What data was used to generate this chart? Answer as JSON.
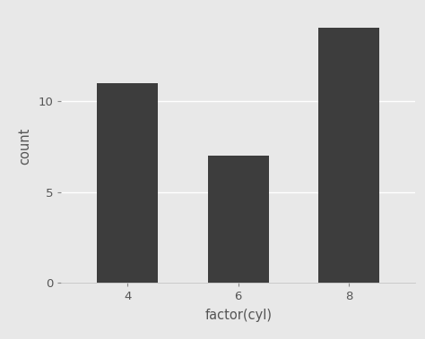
{
  "categories": [
    "4",
    "6",
    "8"
  ],
  "values": [
    11,
    7,
    14
  ],
  "bar_color": "#3d3d3d",
  "bar_width": 0.55,
  "xlabel": "factor(cyl)",
  "ylabel": "count",
  "ylim": [
    0,
    15
  ],
  "yticks": [
    0,
    5,
    10
  ],
  "outer_background": "#e8e8e8",
  "panel_background": "#e8e8e8",
  "grid_color": "#ffffff",
  "xlabel_fontsize": 10.5,
  "ylabel_fontsize": 10.5,
  "tick_fontsize": 9.5,
  "tick_color": "#555555"
}
